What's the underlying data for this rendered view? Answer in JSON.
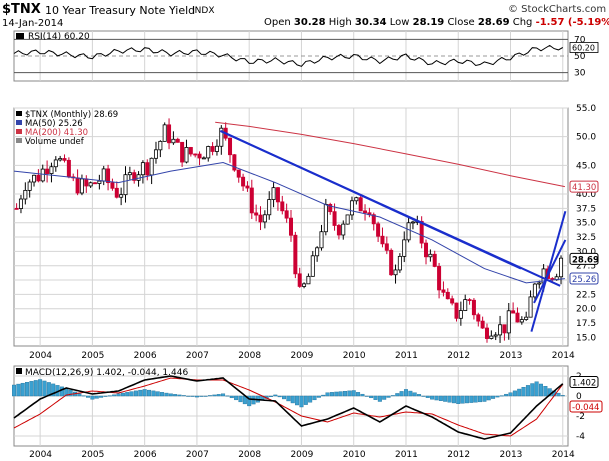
{
  "header": {
    "symbol": "$TNX",
    "description": "10 Year Treasury Note Yield",
    "exchange": "INDX",
    "date": "14-Jan-2014",
    "logo": "© StockCharts.com",
    "open_label": "Open",
    "open": "30.28",
    "high_label": "High",
    "high": "30.34",
    "low_label": "Low",
    "low": "28.19",
    "close_label": "Close",
    "close": "28.69",
    "chg_label": "Chg",
    "chg": "-1.57 (-5.19%)"
  },
  "colors": {
    "up": "#000000",
    "down": "#cc0033",
    "ma50": "#3344aa",
    "ma200": "#cc3344",
    "trend": "#1a2ecc",
    "grid": "#d4d4d4",
    "macd_hist": "#3aa0d0",
    "signal": "#cc0000"
  },
  "chart_data": [
    {
      "type": "line",
      "panel": "RSI",
      "legend": "RSI(14) 60.20",
      "ylim": [
        20,
        80
      ],
      "reference_lines": [
        70,
        50,
        30
      ],
      "yticks": [
        70,
        50,
        30
      ],
      "current_label": "60.20",
      "x": [
        2003.5,
        2004.0,
        2004.5,
        2005.0,
        2005.5,
        2006.0,
        2006.5,
        2007.0,
        2007.5,
        2008.0,
        2008.5,
        2009.0,
        2009.5,
        2010.0,
        2010.5,
        2011.0,
        2011.5,
        2012.0,
        2012.5,
        2013.0,
        2013.5,
        2014.0
      ],
      "values": [
        53,
        55,
        52,
        49,
        56,
        58,
        53,
        55,
        51,
        43,
        45,
        40,
        48,
        50,
        44,
        50,
        41,
        44,
        40,
        48,
        59,
        60.2
      ]
    },
    {
      "type": "candlestick",
      "panel": "Price",
      "legend": [
        "$TNX (Monthly) 28.69",
        "MA(50) 25.26",
        "MA(200) 41.30",
        "Volume undef"
      ],
      "ylim": [
        13.5,
        55
      ],
      "yticks": [
        15.0,
        17.5,
        20.0,
        22.5,
        25.0,
        27.5,
        30.0,
        32.5,
        35.0,
        37.5,
        40.0,
        45.0,
        50.0,
        55.0
      ],
      "ytick_labels": [
        "15.0",
        "17.5",
        "20.0",
        "22.5",
        "25.0",
        "27.5",
        "30.0",
        "32.5",
        "35.0",
        "37.5",
        "40.0",
        "45.0",
        "50.0",
        "55.0"
      ],
      "xlim": [
        2003.5,
        2014.1
      ],
      "xticks": [
        2004,
        2005,
        2006,
        2007,
        2008,
        2009,
        2010,
        2011,
        2012,
        2013,
        2014
      ],
      "xtick_labels": [
        "2004",
        "2005",
        "2006",
        "2007",
        "2008",
        "2009",
        "2010",
        "2011",
        "2012",
        "2013",
        "2014"
      ],
      "close_anchors": [
        [
          2003.5,
          36
        ],
        [
          2003.7,
          42
        ],
        [
          2003.95,
          43
        ],
        [
          2004.3,
          47
        ],
        [
          2004.6,
          42
        ],
        [
          2004.9,
          41
        ],
        [
          2005.2,
          43
        ],
        [
          2005.5,
          40
        ],
        [
          2005.8,
          44
        ],
        [
          2006.05,
          45
        ],
        [
          2006.4,
          51
        ],
        [
          2006.7,
          47
        ],
        [
          2007.0,
          47
        ],
        [
          2007.25,
          48
        ],
        [
          2007.45,
          51
        ],
        [
          2007.7,
          46
        ],
        [
          2007.95,
          40
        ],
        [
          2008.2,
          35
        ],
        [
          2008.5,
          40
        ],
        [
          2008.8,
          33
        ],
        [
          2008.97,
          22
        ],
        [
          2009.2,
          27
        ],
        [
          2009.45,
          37
        ],
        [
          2009.7,
          34
        ],
        [
          2009.95,
          38
        ],
        [
          2010.3,
          38
        ],
        [
          2010.55,
          30
        ],
        [
          2010.8,
          26
        ],
        [
          2010.95,
          33
        ],
        [
          2011.15,
          35
        ],
        [
          2011.35,
          31
        ],
        [
          2011.55,
          27
        ],
        [
          2011.75,
          21
        ],
        [
          2011.95,
          19
        ],
        [
          2012.2,
          22
        ],
        [
          2012.45,
          16
        ],
        [
          2012.65,
          17
        ],
        [
          2012.85,
          16.5
        ],
        [
          2013.05,
          19
        ],
        [
          2013.3,
          17
        ],
        [
          2013.45,
          25
        ],
        [
          2013.65,
          27
        ],
        [
          2013.85,
          26
        ],
        [
          2014.0,
          30
        ],
        [
          2014.04,
          28.69
        ]
      ],
      "ma50": [
        [
          2003.5,
          44
        ],
        [
          2004.5,
          43
        ],
        [
          2005.5,
          42
        ],
        [
          2006.5,
          44
        ],
        [
          2007.5,
          45.5
        ],
        [
          2008.5,
          42
        ],
        [
          2009.5,
          38
        ],
        [
          2010.5,
          36
        ],
        [
          2011.5,
          32
        ],
        [
          2012.5,
          27
        ],
        [
          2013.3,
          24.5
        ],
        [
          2014.04,
          25.26
        ]
      ],
      "ma200": [
        [
          2007.35,
          52.5
        ],
        [
          2008.0,
          51.8
        ],
        [
          2009.0,
          50.4
        ],
        [
          2010.0,
          48.8
        ],
        [
          2011.0,
          47.0
        ],
        [
          2012.0,
          45.2
        ],
        [
          2013.0,
          43.2
        ],
        [
          2014.04,
          41.3
        ]
      ],
      "trendlines": [
        {
          "from": [
            2007.45,
            51
          ],
          "to": [
            2013.95,
            24
          ]
        },
        {
          "from": [
            2007.45,
            51
          ],
          "to": [
            2013.2,
            27
          ]
        },
        {
          "from": [
            2013.4,
            16
          ],
          "to": [
            2014.05,
            37
          ]
        },
        {
          "from": [
            2013.45,
            21
          ],
          "to": [
            2014.05,
            32
          ]
        }
      ],
      "price_labels": {
        "ma200": "41.30",
        "close": "28.69",
        "ma50": "25.26"
      }
    },
    {
      "type": "line",
      "panel": "MACD",
      "legend": "MACD(12,26,9) 1.402, -0.044, 1.446",
      "ylim": [
        -5,
        3
      ],
      "yticks": [
        2,
        0,
        -2,
        -4
      ],
      "ytick_labels": [
        "2",
        "0",
        "-2",
        "-4"
      ],
      "xticks": [
        2004,
        2005,
        2006,
        2007,
        2008,
        2009,
        2010,
        2011,
        2012,
        2013,
        2014
      ],
      "xtick_labels": [
        "2004",
        "2005",
        "2006",
        "2007",
        "2008",
        "2009",
        "2010",
        "2011",
        "2012",
        "2013",
        "2014"
      ],
      "x": [
        2003.5,
        2004.0,
        2004.5,
        2005.0,
        2005.5,
        2006.0,
        2006.5,
        2007.0,
        2007.5,
        2008.0,
        2008.5,
        2009.0,
        2009.5,
        2010.0,
        2010.5,
        2011.0,
        2011.5,
        2012.0,
        2012.5,
        2013.0,
        2013.5,
        2014.04
      ],
      "macd": [
        -2.2,
        -0.3,
        0.8,
        0.2,
        0.5,
        1.6,
        2.0,
        1.5,
        1.8,
        -0.3,
        -0.5,
        -3.0,
        -2.3,
        -1.2,
        -2.6,
        -1.0,
        -2.1,
        -3.6,
        -4.3,
        -3.7,
        -1.0,
        1.402
      ],
      "signal": [
        -3.2,
        -1.8,
        0.1,
        0.5,
        0.3,
        1.0,
        1.8,
        1.6,
        1.6,
        0.6,
        -0.6,
        -2.0,
        -2.6,
        -1.7,
        -2.1,
        -1.6,
        -1.8,
        -2.9,
        -3.8,
        -4.0,
        -2.3,
        1.446
      ],
      "histogram_label": "-0.044",
      "macd_label": "1.402"
    }
  ]
}
